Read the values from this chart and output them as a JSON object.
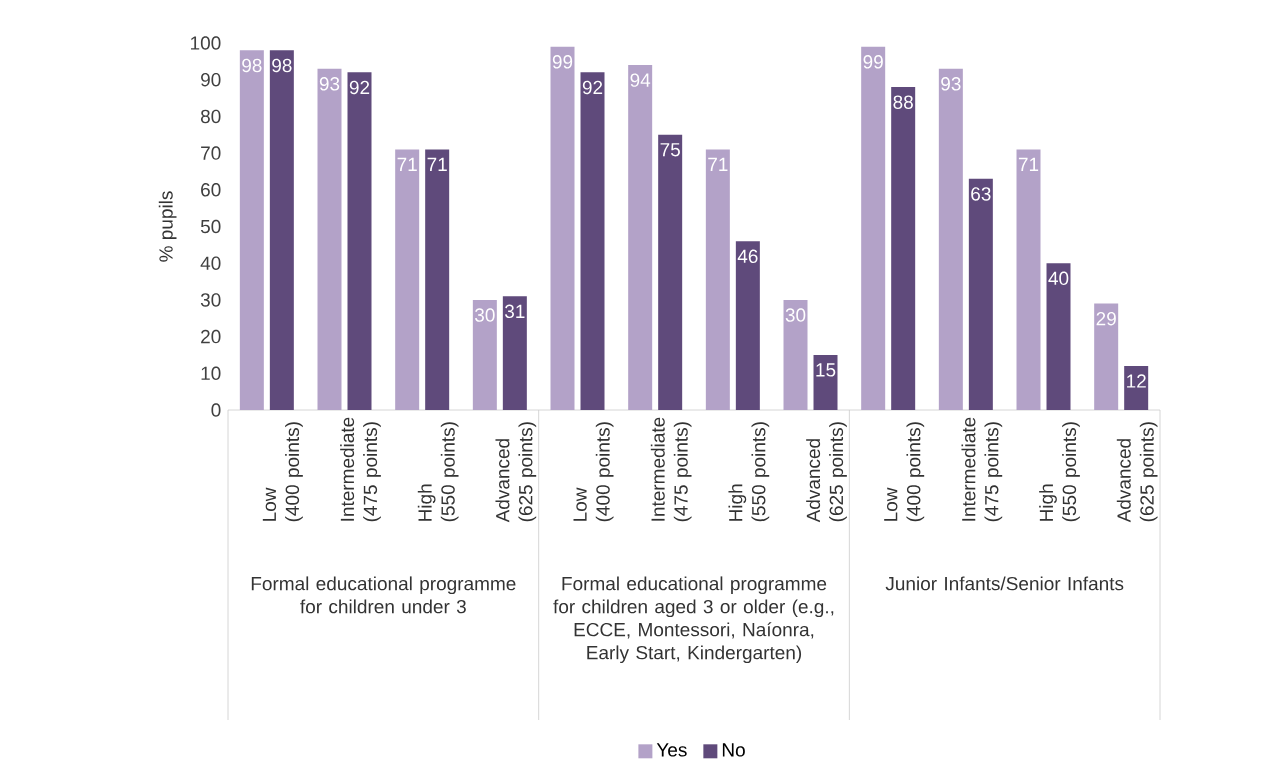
{
  "chart_data": {
    "type": "bar",
    "categories": [
      "Low\n(400 points)",
      "Intermediate\n(475 points)",
      "High\n(550 points)",
      "Advanced\n(625 points)",
      "Low\n(400 points)",
      "Intermediate\n(475 points)",
      "High\n(550 points)",
      "Advanced\n(625 points)",
      "Low\n(400 points)",
      "Intermediate\n(475 points)",
      "High\n(550 points)",
      "Advanced\n(625 points)"
    ],
    "annotations": [
      "Formal educational programme for children under 3",
      "Formal educational programme for children aged 3 or older (e.g., ECCE, Montessori, Naíonra, Early Start, Kindergarten)",
      "Junior Infants/Senior Infants"
    ],
    "ylabel": "% pupils",
    "series": [
      {
        "name": "Yes",
        "color": "#b3a2c8",
        "values": [
          98,
          93,
          71,
          30,
          99,
          94,
          71,
          30,
          99,
          93,
          71,
          29
        ]
      },
      {
        "name": "No",
        "color": "#5f4a7b",
        "values": [
          98,
          92,
          71,
          31,
          92,
          75,
          46,
          15,
          88,
          63,
          40,
          12
        ]
      }
    ],
    "ylim": [
      0,
      100
    ],
    "yticks": [
      0,
      10,
      20,
      30,
      40,
      50,
      60,
      70,
      80,
      90,
      100
    ],
    "data_labels": true,
    "legend": "bottom"
  }
}
